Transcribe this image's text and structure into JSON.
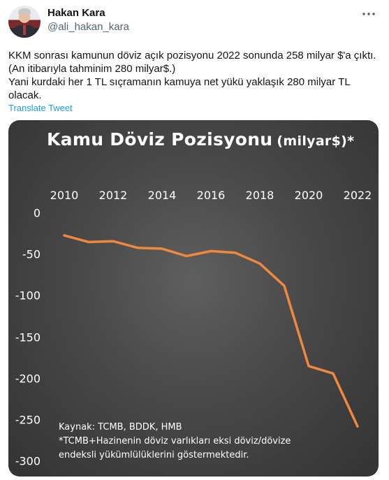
{
  "tweet": {
    "author_name": "Hakan Kara",
    "author_handle": "@ali_hakan_kara",
    "more_icon": "more-horizontal-icon",
    "text_lines": [
      "KKM sonrası kamunun döviz açık pozisyonu 2022 sonunda 258 milyar $'a çıktı. (An itibarıyla tahminim 280 milyar$.)",
      "Yani kurdaki her 1 TL sıçramanın kamuya net yükü yaklaşık 280 milyar TL olacak."
    ],
    "translate_label": "Translate Tweet"
  },
  "colors": {
    "line": "#f0883e",
    "link": "#1d9bf0",
    "chart_bg": "#4a4a4a"
  },
  "chart_data": {
    "type": "line",
    "title": "Kamu Döviz Pozisyonu",
    "title_unit": "(milyar$)*",
    "x": [
      2010,
      2011,
      2012,
      2013,
      2014,
      2015,
      2016,
      2017,
      2018,
      2019,
      2020,
      2021,
      2022
    ],
    "series": [
      {
        "values": [
          -27,
          -35,
          -34,
          -42,
          -43,
          -52,
          -46,
          -48,
          -61,
          -88,
          -185,
          -194,
          -258
        ]
      }
    ],
    "x_ticks": [
      "2010",
      "2012",
      "2014",
      "2016",
      "2018",
      "2020",
      "2022"
    ],
    "y_ticks": [
      "0",
      "-50",
      "-100",
      "-150",
      "-200",
      "-250",
      "-300"
    ],
    "xlim": [
      2010,
      2022
    ],
    "ylim": [
      -300,
      0
    ],
    "x_axis_position": "top",
    "grid": false,
    "notes": [
      "Kaynak:  TCMB, BDDK, HMB",
      "*TCMB+Hazinenin döviz varlıkları eksi döviz/dövize",
      "endeksli yükümlülüklerini göstermektedir."
    ]
  }
}
